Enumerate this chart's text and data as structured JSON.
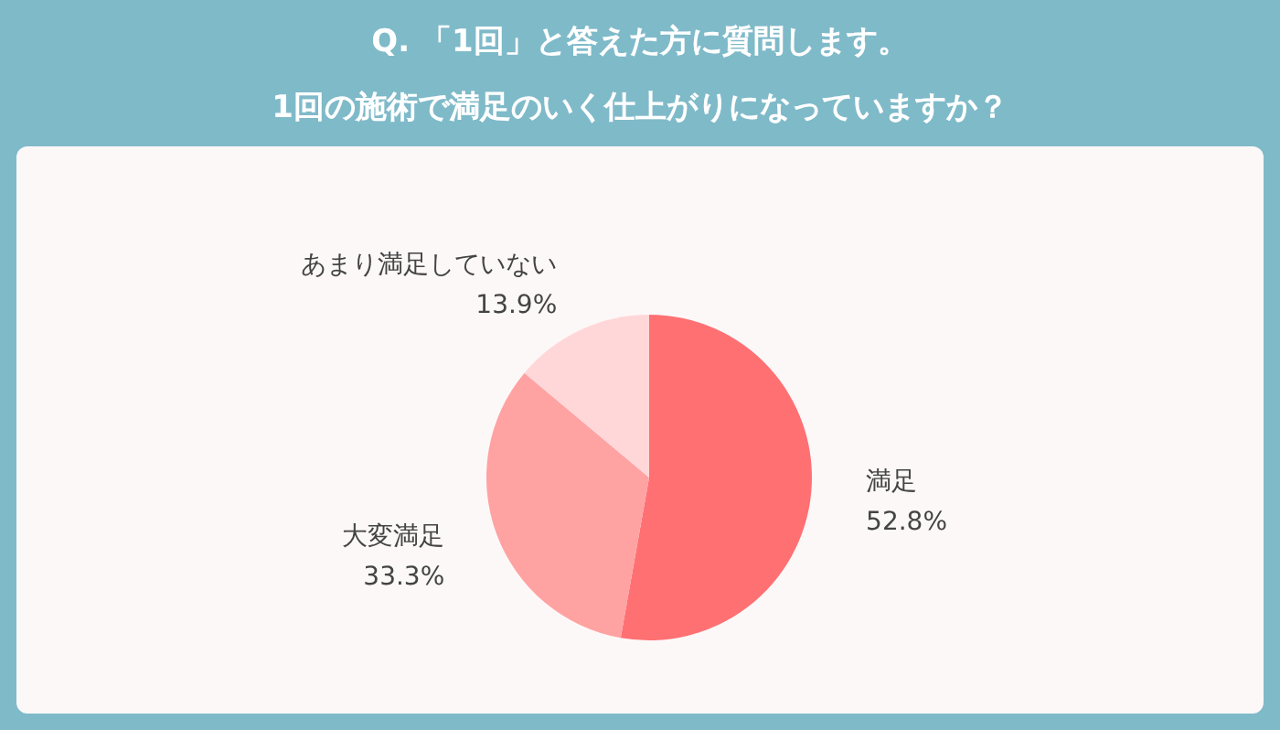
{
  "chart_data": {
    "type": "pie",
    "title": "Q. 「1回」と答えた方に質問します。",
    "subtitle": "1回の施術で満足のいく仕上がりになっていますか？",
    "categories": [
      "満足",
      "大変満足",
      "あまり満足していない"
    ],
    "values": [
      52.8,
      33.3,
      13.9
    ],
    "colors": [
      "#ff7073",
      "#ffa2a2",
      "#ffd7d9"
    ],
    "value_labels": [
      "52.8%",
      "33.3%",
      "13.9%"
    ]
  }
}
